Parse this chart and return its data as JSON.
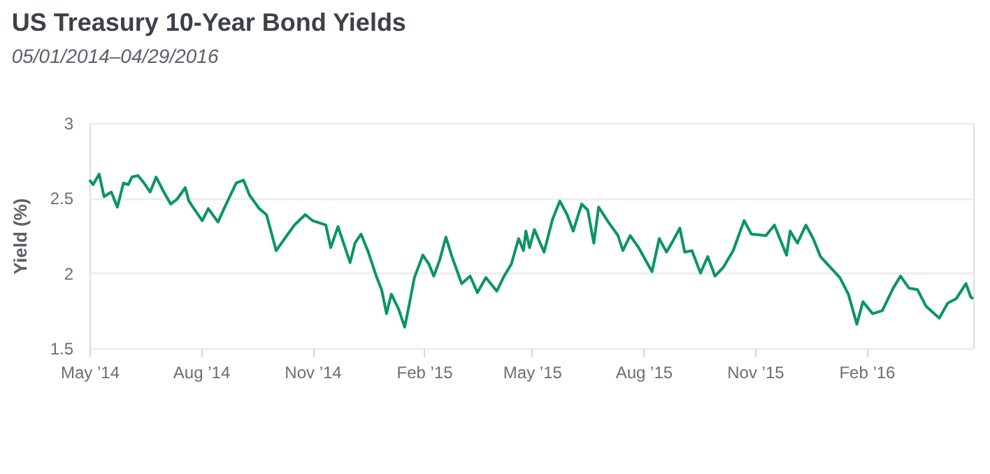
{
  "chart_data": {
    "type": "line",
    "title": "US Treasury 10-Year Bond Yields",
    "subtitle": "05/01/2014–04/29/2016",
    "ylabel": "Yield (%)",
    "x": [
      "2014-05-01",
      "2014-05-04",
      "2014-05-09",
      "2014-05-13",
      "2014-05-19",
      "2014-05-24",
      "2014-05-29",
      "2014-06-02",
      "2014-06-05",
      "2014-06-10",
      "2014-06-15",
      "2014-06-20",
      "2014-06-25",
      "2014-06-30",
      "2014-07-07",
      "2014-07-12",
      "2014-07-19",
      "2014-07-22",
      "2014-07-27",
      "2014-08-02",
      "2014-08-07",
      "2014-08-15",
      "2014-08-20",
      "2014-08-30",
      "2014-09-05",
      "2014-09-10",
      "2014-09-18",
      "2014-09-24",
      "2014-10-02",
      "2014-10-09",
      "2014-10-17",
      "2014-10-26",
      "2014-11-01",
      "2014-11-12",
      "2014-11-16",
      "2014-11-22",
      "2014-12-02",
      "2014-12-06",
      "2014-12-11",
      "2014-12-17",
      "2014-12-24",
      "2014-12-28",
      "2015-01-01",
      "2015-01-05",
      "2015-01-11",
      "2015-01-16",
      "2015-01-20",
      "2015-01-24",
      "2015-01-31",
      "2015-02-05",
      "2015-02-09",
      "2015-02-14",
      "2015-02-19",
      "2015-02-24",
      "2015-03-04",
      "2015-03-11",
      "2015-03-17",
      "2015-03-24",
      "2015-04-02",
      "2015-04-08",
      "2015-04-14",
      "2015-04-20",
      "2015-04-24",
      "2015-04-26",
      "2015-04-29",
      "2015-05-03",
      "2015-05-11",
      "2015-05-18",
      "2015-05-24",
      "2015-05-30",
      "2015-06-04",
      "2015-06-11",
      "2015-06-16",
      "2015-06-21",
      "2015-06-25",
      "2015-07-03",
      "2015-07-11",
      "2015-07-15",
      "2015-07-21",
      "2015-07-28",
      "2015-08-08",
      "2015-08-14",
      "2015-08-20",
      "2015-08-25",
      "2015-08-31",
      "2015-09-04",
      "2015-09-10",
      "2015-09-17",
      "2015-09-23",
      "2015-09-29",
      "2015-10-06",
      "2015-10-14",
      "2015-10-23",
      "2015-10-29",
      "2015-11-10",
      "2015-11-17",
      "2015-11-27",
      "2015-11-30",
      "2015-12-06",
      "2015-12-13",
      "2015-12-19",
      "2015-12-25",
      "2016-01-02",
      "2016-01-10",
      "2016-01-17",
      "2016-01-24",
      "2016-01-29",
      "2016-02-06",
      "2016-02-14",
      "2016-02-23",
      "2016-02-29",
      "2016-03-07",
      "2016-03-14",
      "2016-03-21",
      "2016-04-01",
      "2016-04-08",
      "2016-04-15",
      "2016-04-23",
      "2016-04-27",
      "2016-04-29"
    ],
    "series": [
      {
        "color": "#0a9561",
        "values": [
          2.62,
          2.59,
          2.66,
          2.51,
          2.54,
          2.44,
          2.6,
          2.59,
          2.64,
          2.65,
          2.6,
          2.54,
          2.64,
          2.56,
          2.46,
          2.49,
          2.57,
          2.48,
          2.42,
          2.35,
          2.43,
          2.34,
          2.43,
          2.6,
          2.62,
          2.52,
          2.43,
          2.39,
          2.15,
          2.23,
          2.32,
          2.39,
          2.35,
          2.32,
          2.17,
          2.31,
          2.07,
          2.2,
          2.26,
          2.14,
          1.97,
          1.89,
          1.73,
          1.86,
          1.76,
          1.64,
          1.8,
          1.97,
          2.12,
          2.06,
          1.98,
          2.09,
          2.24,
          2.11,
          1.93,
          1.98,
          1.87,
          1.97,
          1.88,
          1.98,
          2.06,
          2.23,
          2.15,
          2.28,
          2.17,
          2.29,
          2.14,
          2.36,
          2.48,
          2.39,
          2.28,
          2.46,
          2.42,
          2.2,
          2.44,
          2.34,
          2.25,
          2.15,
          2.25,
          2.17,
          2.01,
          2.23,
          2.14,
          2.21,
          2.3,
          2.14,
          2.15,
          2.0,
          2.11,
          1.98,
          2.04,
          2.15,
          2.35,
          2.26,
          2.25,
          2.32,
          2.12,
          2.28,
          2.2,
          2.32,
          2.23,
          2.11,
          2.04,
          1.97,
          1.86,
          1.66,
          1.81,
          1.73,
          1.75,
          1.9,
          1.98,
          1.9,
          1.89,
          1.78,
          1.7,
          1.8,
          1.83,
          1.93,
          1.84,
          1.83
        ]
      }
    ],
    "xlim": [
      "2014-05-01",
      "2016-04-29"
    ],
    "xticks": [
      {
        "value": "2014-05-01",
        "label": "May ’14"
      },
      {
        "value": "2014-08-01",
        "label": "Aug ’14"
      },
      {
        "value": "2014-11-01",
        "label": "Nov ’14"
      },
      {
        "value": "2015-02-01",
        "label": "Feb ’15"
      },
      {
        "value": "2015-05-01",
        "label": "May ’15"
      },
      {
        "value": "2015-08-01",
        "label": "Aug ’15"
      },
      {
        "value": "2015-11-01",
        "label": "Nov ’15"
      },
      {
        "value": "2016-02-01",
        "label": "Feb ’16"
      }
    ],
    "ylim": [
      1.5,
      3
    ],
    "yticks": [
      1.5,
      2,
      2.5,
      3
    ],
    "grid": "y",
    "line_style": "solid",
    "marker": "none"
  }
}
